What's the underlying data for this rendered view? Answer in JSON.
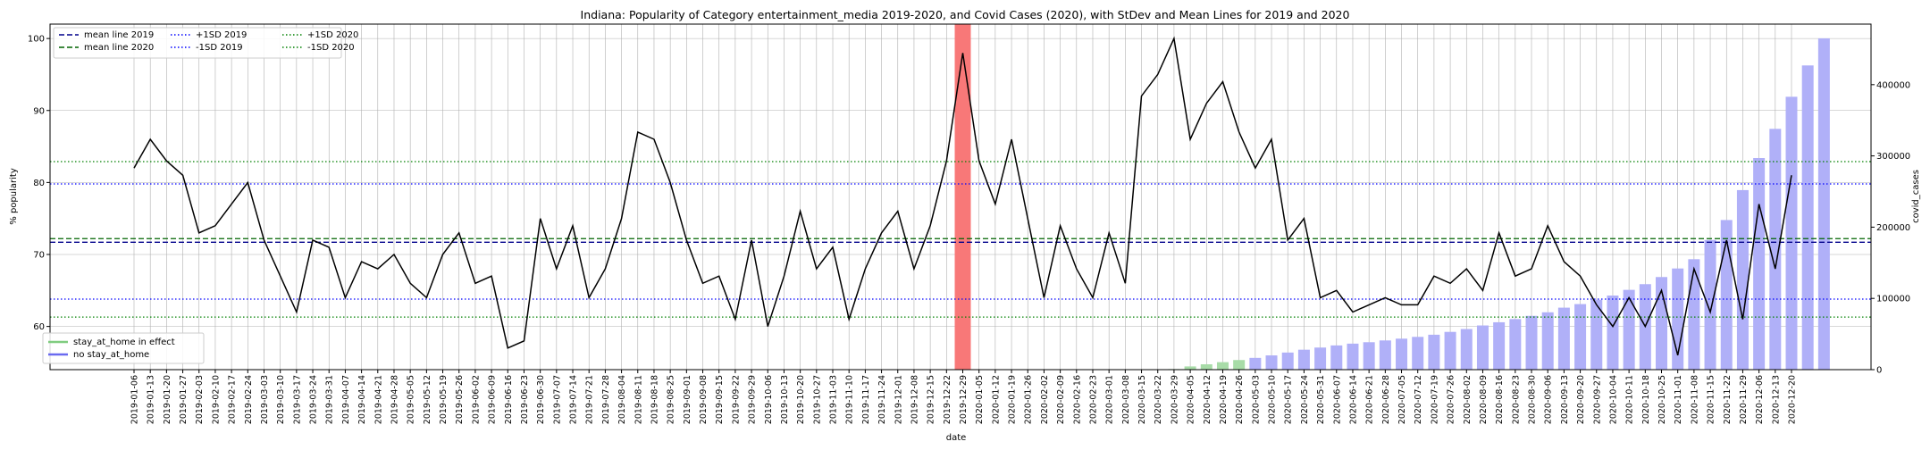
{
  "chart_data": {
    "type": "line",
    "title": "Indiana: Popularity of Category entertainment_media 2019-2020, and Covid Cases (2020), with StDev and Mean Lines for 2019 and 2020",
    "xlabel": "date",
    "ylabel": "% popularity",
    "y2label": "covid_cases",
    "ylim": [
      54,
      102
    ],
    "y2lim": [
      0,
      485000
    ],
    "yticks": [
      60,
      70,
      80,
      90,
      100
    ],
    "y2ticks": [
      0,
      100000,
      200000,
      300000,
      400000
    ],
    "grid": true,
    "dates": [
      "2019-01-06",
      "2019-01-13",
      "2019-01-20",
      "2019-01-27",
      "2019-02-03",
      "2019-02-10",
      "2019-02-17",
      "2019-02-24",
      "2019-03-03",
      "2019-03-10",
      "2019-03-17",
      "2019-03-24",
      "2019-03-31",
      "2019-04-07",
      "2019-04-14",
      "2019-04-21",
      "2019-04-28",
      "2019-05-05",
      "2019-05-12",
      "2019-05-19",
      "2019-05-26",
      "2019-06-02",
      "2019-06-09",
      "2019-06-16",
      "2019-06-23",
      "2019-06-30",
      "2019-07-07",
      "2019-07-14",
      "2019-07-21",
      "2019-07-28",
      "2019-08-04",
      "2019-08-11",
      "2019-08-18",
      "2019-08-25",
      "2019-09-01",
      "2019-09-08",
      "2019-09-15",
      "2019-09-22",
      "2019-09-29",
      "2019-10-06",
      "2019-10-13",
      "2019-10-20",
      "2019-10-27",
      "2019-11-03",
      "2019-11-10",
      "2019-11-17",
      "2019-11-24",
      "2019-12-01",
      "2019-12-08",
      "2019-12-15",
      "2019-12-22",
      "2019-12-29",
      "2020-01-05",
      "2020-01-12",
      "2020-01-19",
      "2020-01-26",
      "2020-02-02",
      "2020-02-09",
      "2020-02-16",
      "2020-02-23",
      "2020-03-01",
      "2020-03-08",
      "2020-03-15",
      "2020-03-22",
      "2020-03-29",
      "2020-04-05",
      "2020-04-12",
      "2020-04-19",
      "2020-04-26",
      "2020-05-03",
      "2020-05-10",
      "2020-05-17",
      "2020-05-24",
      "2020-05-31",
      "2020-06-07",
      "2020-06-14",
      "2020-06-21",
      "2020-06-28",
      "2020-07-05",
      "2020-07-12",
      "2020-07-19",
      "2020-07-26",
      "2020-08-02",
      "2020-08-09",
      "2020-08-16",
      "2020-08-23",
      "2020-08-30",
      "2020-09-06",
      "2020-09-13",
      "2020-09-20",
      "2020-09-27",
      "2020-10-04",
      "2020-10-11",
      "2020-10-18",
      "2020-10-25",
      "2020-11-01",
      "2020-11-08",
      "2020-11-15",
      "2020-11-22",
      "2020-11-29",
      "2020-12-06",
      "2020-12-13",
      "2020-12-20"
    ],
    "popularity": [
      82,
      86,
      83,
      81,
      73,
      74,
      77,
      80,
      72,
      67,
      62,
      72,
      71,
      64,
      69,
      68,
      70,
      66,
      64,
      70,
      73,
      66,
      67,
      57,
      58,
      75,
      68,
      74,
      64,
      68,
      75,
      87,
      86,
      80,
      72,
      66,
      67,
      61,
      72,
      60,
      67,
      76,
      68,
      71,
      61,
      68,
      73,
      76,
      68,
      74,
      83,
      98,
      83,
      77,
      86,
      75,
      64,
      74,
      68,
      64,
      73,
      66,
      92,
      95,
      100,
      86,
      91,
      94,
      87,
      82,
      86,
      72,
      75,
      64,
      65,
      62,
      63,
      64,
      63,
      63,
      67,
      66,
      68,
      65,
      73,
      67,
      68,
      74,
      69,
      67,
      63,
      60,
      64,
      60,
      65,
      56,
      68,
      62,
      72,
      61,
      77,
      68,
      81
    ],
    "cases": [
      0,
      0,
      0,
      0,
      0,
      0,
      0,
      0,
      0,
      0,
      0,
      0,
      0,
      0,
      0,
      0,
      0,
      0,
      0,
      0,
      0,
      0,
      0,
      0,
      0,
      0,
      0,
      0,
      0,
      0,
      0,
      0,
      0,
      0,
      0,
      0,
      0,
      0,
      0,
      0,
      0,
      0,
      0,
      0,
      0,
      0,
      0,
      0,
      0,
      0,
      0,
      0,
      0,
      0,
      0,
      0,
      0,
      0,
      0,
      0,
      0,
      0,
      0,
      0,
      800,
      4500,
      7500,
      10500,
      13500,
      16500,
      20000,
      24000,
      28000,
      31000,
      34000,
      36500,
      38500,
      41000,
      43500,
      46000,
      49000,
      53000,
      57000,
      62000,
      66500,
      71000,
      75500,
      80500,
      87000,
      92000,
      98000,
      104000,
      112000,
      120000,
      130000,
      142000,
      155000,
      182000,
      210000,
      252000,
      297000,
      338000,
      383000,
      427000,
      465000
    ],
    "stay_at_home_dates": [
      "2020-03-22",
      "2020-03-29",
      "2020-04-05",
      "2020-04-12",
      "2020-04-19",
      "2020-04-26"
    ],
    "highlight_week": "2019-12-29",
    "reference_lines": {
      "mean_2019": 71.7,
      "mean_2020": 72.2,
      "plus_1sd_2019": 79.8,
      "minus_1sd_2019": 63.8,
      "plus_1sd_2020": 82.9,
      "minus_1sd_2020": 61.3
    },
    "colors": {
      "line": "#000000",
      "mean_2019": "#00008b",
      "mean_2020": "#006400",
      "sd_2019": "#0000ff",
      "sd_2020": "#008000",
      "bar_no_stay": "#b0b0f8",
      "bar_stay": "#a8dca8",
      "highlight": "#f87878",
      "grid": "#b0b0b0"
    },
    "legend_top": [
      {
        "label": "mean line 2019",
        "color": "#00008b",
        "dash": "6,3"
      },
      {
        "label": "mean line 2020",
        "color": "#006400",
        "dash": "6,3"
      },
      {
        "label": "+1SD 2019",
        "color": "#0000ff",
        "dash": "1.5,2.5"
      },
      {
        "label": "-1SD 2019",
        "color": "#0000ff",
        "dash": "1.5,2.5"
      },
      {
        "label": "+1SD 2020",
        "color": "#008000",
        "dash": "1.5,2.5"
      },
      {
        "label": "-1SD 2020",
        "color": "#008000",
        "dash": "1.5,2.5"
      }
    ],
    "legend_bottom": [
      {
        "label": "stay_at_home in effect",
        "color": "#7fcc7f"
      },
      {
        "label": "no stay_at_home",
        "color": "#6a6af0"
      }
    ],
    "legend_top_placement": "upper-left",
    "legend_bottom_placement": "lower-left"
  }
}
